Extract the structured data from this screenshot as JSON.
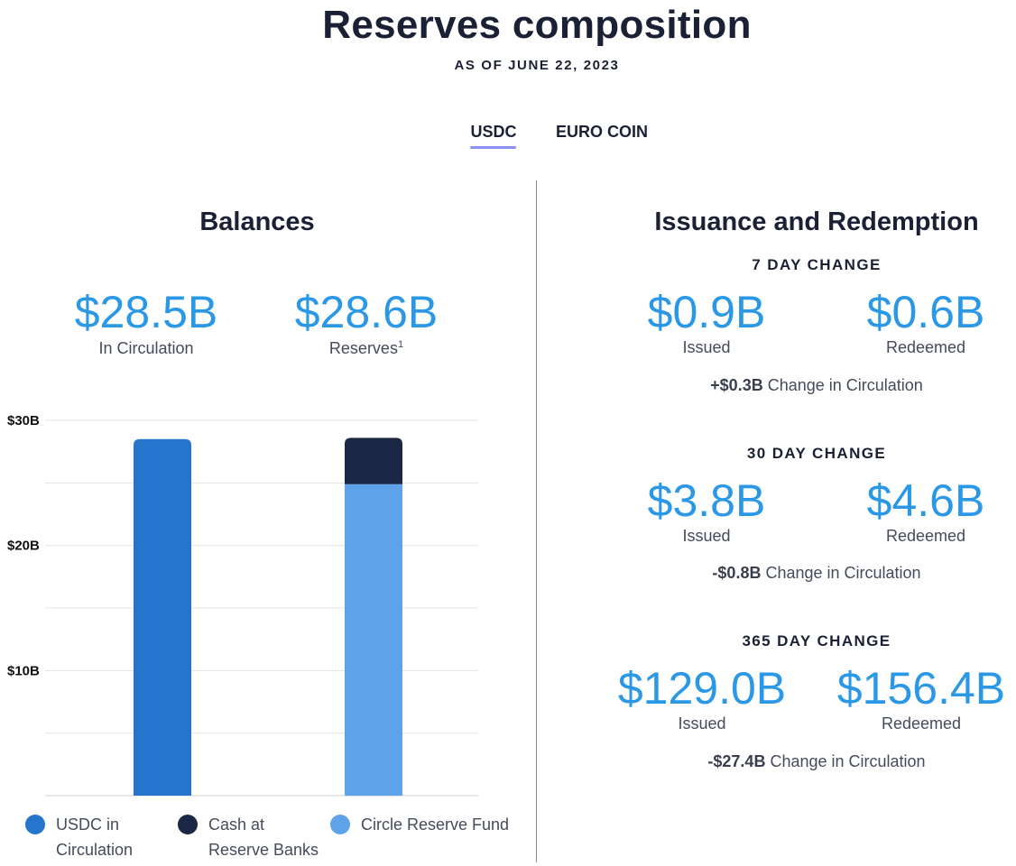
{
  "page": {
    "title": "Reserves composition",
    "subtitle": "AS OF JUNE 22, 2023"
  },
  "tabs": [
    {
      "label": "USDC",
      "active": true
    },
    {
      "label": "EURO COIN",
      "active": false
    }
  ],
  "colors": {
    "usdc_in_circulation": "#2675cc",
    "cash_at_reserve_banks": "#1b2745",
    "circle_reserve_fund": "#5ea3ea",
    "accent_number": "#2b98e6",
    "tab_underline": "#8c8ff5"
  },
  "balances": {
    "heading": "Balances",
    "in_circulation": {
      "value": "$28.5B",
      "label": "In Circulation"
    },
    "reserves": {
      "value": "$28.6B",
      "label": "Reserves",
      "footnote": "1"
    }
  },
  "chart_data": {
    "type": "bar",
    "stacked": true,
    "categories": [
      "",
      ""
    ],
    "series": [
      {
        "name": "USDC in Circulation",
        "values": [
          28.5,
          0
        ]
      },
      {
        "name": "Circle Reserve Fund",
        "values": [
          0,
          24.9
        ]
      },
      {
        "name": "Cash at Reserve Banks",
        "values": [
          0,
          3.7
        ]
      }
    ],
    "y_unit": "$B",
    "ylim": [
      0,
      30
    ],
    "yticks": [
      10,
      20,
      30
    ],
    "ytick_labels": [
      "$10B",
      "$20B",
      "$30B"
    ],
    "grid": true,
    "legend": {
      "placement": "bottom",
      "items": [
        {
          "label": "USDC in Circulation",
          "lines": [
            "USDC in",
            "Circulation"
          ],
          "color_key": "usdc_in_circulation"
        },
        {
          "label": "Cash at Reserve Banks",
          "lines": [
            "Cash at",
            "Reserve Banks"
          ],
          "color_key": "cash_at_reserve_banks"
        },
        {
          "label": "Circle Reserve Fund",
          "lines": [
            "Circle Reserve Fund"
          ],
          "color_key": "circle_reserve_fund"
        }
      ]
    }
  },
  "issuance": {
    "heading": "Issuance and Redemption",
    "changes": [
      {
        "title": "7 DAY CHANGE",
        "issued": "$0.9B",
        "issued_label": "Issued",
        "redeemed": "$0.6B",
        "redeemed_label": "Redeemed",
        "net": "+$0.3B",
        "net_label": "Change in Circulation"
      },
      {
        "title": "30 DAY CHANGE",
        "issued": "$3.8B",
        "issued_label": "Issued",
        "redeemed": "$4.6B",
        "redeemed_label": "Redeemed",
        "net": "-$0.8B",
        "net_label": "Change in Circulation"
      },
      {
        "title": "365 DAY CHANGE",
        "issued": "$129.0B",
        "issued_label": "Issued",
        "redeemed": "$156.4B",
        "redeemed_label": "Redeemed",
        "net": "-$27.4B",
        "net_label": "Change in Circulation"
      }
    ]
  }
}
